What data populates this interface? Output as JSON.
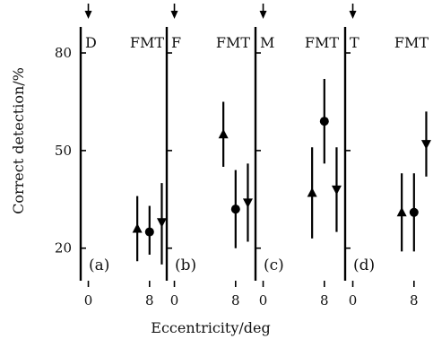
{
  "chart_data": {
    "type": "scatter",
    "title": "",
    "ylabel": "Correct detection/%",
    "xlabel": "Eccentricity/deg",
    "ylim": [
      10,
      88
    ],
    "xlim": [
      -1,
      10.6
    ],
    "yticks": [
      20,
      50,
      80
    ],
    "xticks": [
      0,
      8
    ],
    "grid": false,
    "fixation_marker_x": 0,
    "panels": [
      {
        "letter": "(a)",
        "tag": "D",
        "label": "FMT",
        "points": [
          {
            "x": 6.4,
            "y": 26,
            "lo": 16,
            "hi": 36,
            "marker": "triangle"
          },
          {
            "x": 8.0,
            "y": 25,
            "lo": 18,
            "hi": 33,
            "marker": "circle"
          },
          {
            "x": 9.6,
            "y": 28,
            "lo": 15,
            "hi": 40,
            "marker": "triangle-down"
          }
        ]
      },
      {
        "letter": "(b)",
        "tag": "F",
        "label": "FMT",
        "points": [
          {
            "x": 6.4,
            "y": 55,
            "lo": 45,
            "hi": 65,
            "marker": "triangle"
          },
          {
            "x": 8.0,
            "y": 32,
            "lo": 20,
            "hi": 44,
            "marker": "circle"
          },
          {
            "x": 9.6,
            "y": 34,
            "lo": 22,
            "hi": 46,
            "marker": "triangle-down"
          }
        ]
      },
      {
        "letter": "(c)",
        "tag": "M",
        "label": "FMT",
        "points": [
          {
            "x": 6.4,
            "y": 37,
            "lo": 23,
            "hi": 51,
            "marker": "triangle"
          },
          {
            "x": 8.0,
            "y": 59,
            "lo": 46,
            "hi": 72,
            "marker": "circle"
          },
          {
            "x": 9.6,
            "y": 38,
            "lo": 25,
            "hi": 51,
            "marker": "triangle-down"
          }
        ]
      },
      {
        "letter": "(d)",
        "tag": "T",
        "label": "FMT",
        "points": [
          {
            "x": 6.4,
            "y": 31,
            "lo": 19,
            "hi": 43,
            "marker": "triangle"
          },
          {
            "x": 8.0,
            "y": 31,
            "lo": 19,
            "hi": 43,
            "marker": "circle"
          },
          {
            "x": 9.6,
            "y": 52,
            "lo": 42,
            "hi": 62,
            "marker": "triangle-down"
          }
        ]
      }
    ]
  }
}
